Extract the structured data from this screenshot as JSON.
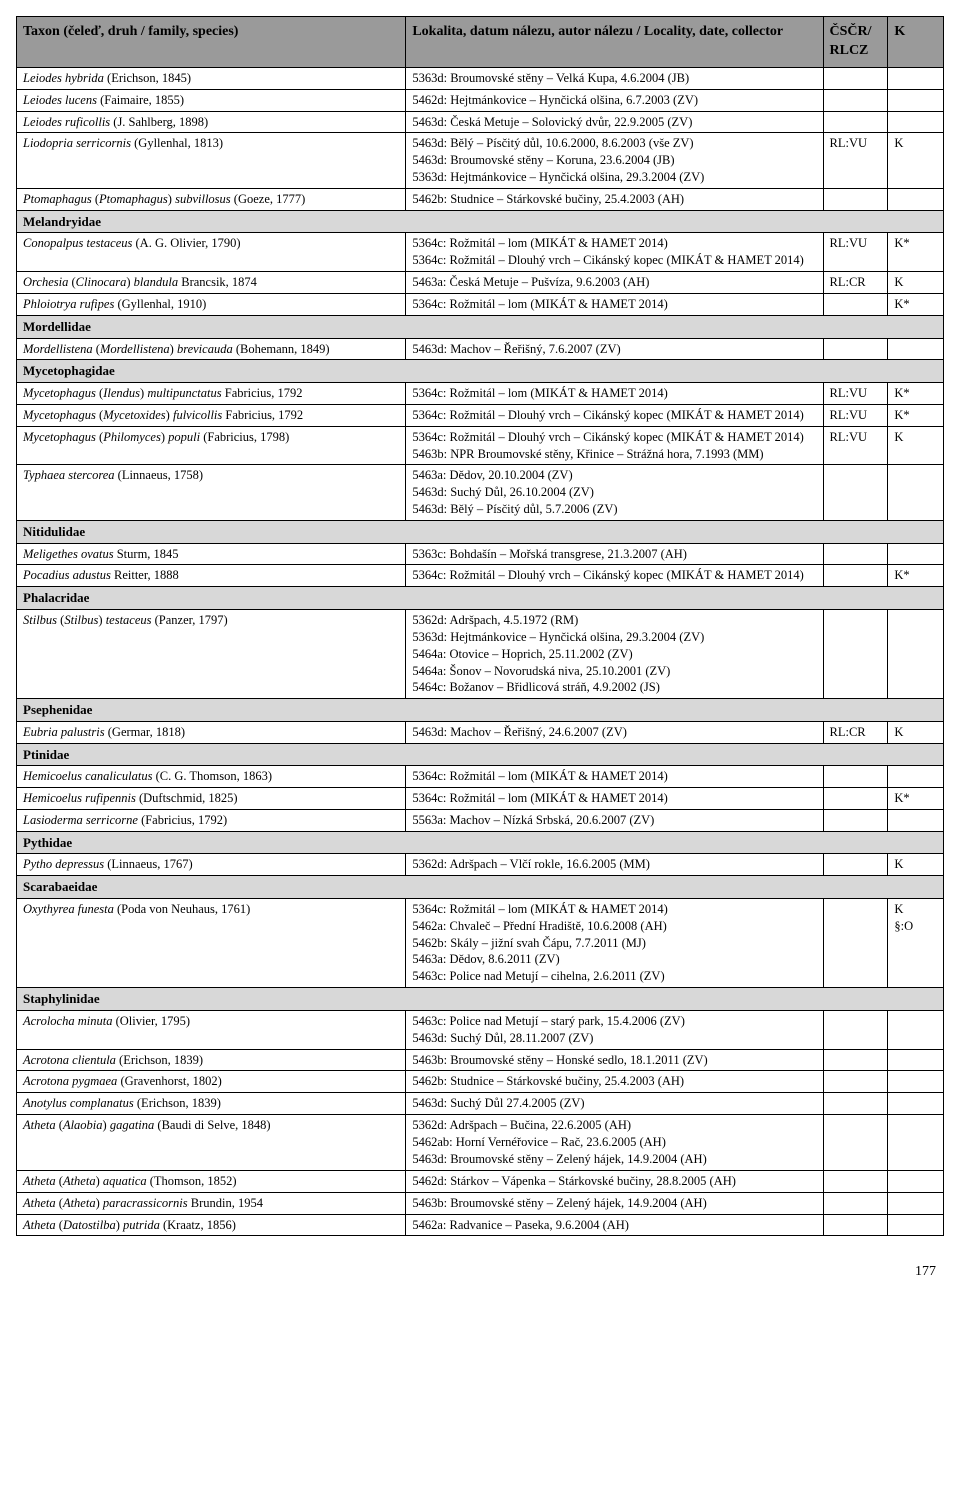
{
  "header": {
    "taxon": "Taxon (čeleď, druh / family, species)",
    "locality": "Lokalita, datum nálezu, autor nálezu / Locality, date, collector",
    "cscr": "ČSČR/ RLCZ",
    "k": "K"
  },
  "rows": [
    {
      "type": "species",
      "taxon_html": "<em>Leiodes hybrida</em> (Erichson, 1845)",
      "loc": "5363d: Broumovské stěny – Velká Kupa, 4.6.2004 (JB)",
      "cs": "",
      "k": ""
    },
    {
      "type": "species",
      "taxon_html": "<em>Leiodes lucens</em> (Faimaire, 1855)",
      "loc": "5462d: Hejtmánkovice – Hynčická olšina, 6.7.2003 (ZV)",
      "cs": "",
      "k": ""
    },
    {
      "type": "species",
      "taxon_html": "<em>Leiodes ruficollis</em> (J. Sahlberg, 1898)",
      "loc": "5463d: Česká Metuje – Solovický dvůr, 22.9.2005 (ZV)",
      "cs": "",
      "k": ""
    },
    {
      "type": "species",
      "taxon_html": "<em>Liodopria serricornis</em> (Gyllenhal, 1813)",
      "loc": "5463d: Bělý – Písčitý důl, 10.6.2000, 8.6.2003 (vše ZV)\n5463d: Broumovské stěny – Koruna, 23.6.2004 (JB)\n5363d: Hejtmánkovice – Hynčická olšina, 29.3.2004 (ZV)",
      "cs": "RL:VU",
      "k": "K"
    },
    {
      "type": "species",
      "taxon_html": "<em>Ptomaphagus</em> (<em>Ptomaphagus</em>) <em>subvillosus</em> (Goeze, 1777)",
      "loc": "5462b: Studnice – Stárkovské bučiny, 25.4.2003 (AH)",
      "cs": "",
      "k": ""
    },
    {
      "type": "family",
      "label": "Melandryidae"
    },
    {
      "type": "species",
      "taxon_html": "<em>Conopalpus testaceus</em> (A. G. Olivier, 1790)",
      "loc": "5364c: Rožmitál – lom (MIKÁT & HAMET 2014)\n5364c: Rožmitál – Dlouhý vrch – Cikánský kopec (MIKÁT & HAMET 2014)",
      "cs": "RL:VU",
      "k": "K*"
    },
    {
      "type": "species",
      "taxon_html": "<em>Orchesia</em> (<em>Clinocara</em>) <em>blandula</em> Brancsik, 1874",
      "loc": "5463a: Česká Metuje – Pušvíza, 9.6.2003 (AH)",
      "cs": "RL:CR",
      "k": "K"
    },
    {
      "type": "species",
      "taxon_html": "<em>Phloiotrya rufipes</em> (Gyllenhal, 1910)",
      "loc": "5364c: Rožmitál – lom (MIKÁT & HAMET 2014)",
      "cs": "",
      "k": "K*"
    },
    {
      "type": "family",
      "label": "Mordellidae"
    },
    {
      "type": "species",
      "taxon_html": "<em>Mordellistena</em> (<em>Mordellistena</em>) <em>brevicauda</em> (Bohemann, 1849)",
      "loc": "5463d: Machov – Řeřišný, 7.6.2007 (ZV)",
      "cs": "",
      "k": ""
    },
    {
      "type": "family",
      "label": "Mycetophagidae"
    },
    {
      "type": "species",
      "taxon_html": "<em>Mycetophagus</em> (<em>Ilendus</em>) <em>multipunctatus</em> Fabricius, 1792",
      "loc": "5364c: Rožmitál – lom (MIKÁT & HAMET 2014)",
      "cs": "RL:VU",
      "k": "K*"
    },
    {
      "type": "species",
      "taxon_html": "<em>Mycetophagus</em> (<em>Mycetoxides</em>) <em>fulvicollis</em> Fabricius, 1792",
      "loc": "5364c: Rožmitál – Dlouhý vrch – Cikánský kopec (MIKÁT & HAMET 2014)",
      "cs": "RL:VU",
      "k": "K*"
    },
    {
      "type": "species",
      "taxon_html": "<em>Mycetophagus</em> (<em>Philomyces</em>) <em>populi</em> (Fabricius, 1798)",
      "loc": "5364c: Rožmitál – Dlouhý vrch – Cikánský kopec (MIKÁT & HAMET 2014)\n5463b: NPR Broumovské stěny, Křinice – Strážná hora, 7.1993 (MM)",
      "cs": "RL:VU",
      "k": "K"
    },
    {
      "type": "species",
      "taxon_html": "<em>Typhaea stercorea</em> (Linnaeus, 1758)",
      "loc": "5463a: Dědov, 20.10.2004 (ZV)\n5463d: Suchý Důl, 26.10.2004 (ZV)\n5463d: Bělý – Písčitý důl, 5.7.2006 (ZV)",
      "cs": "",
      "k": ""
    },
    {
      "type": "family",
      "label": "Nitidulidae"
    },
    {
      "type": "species",
      "taxon_html": "<em>Meligethes ovatus</em> Sturm, 1845",
      "loc": "5363c: Bohdašín – Mořská transgrese, 21.3.2007 (AH)",
      "cs": "",
      "k": ""
    },
    {
      "type": "species",
      "taxon_html": "<em>Pocadius adustus</em> Reitter, 1888",
      "loc": "5364c: Rožmitál – Dlouhý vrch – Cikánský kopec (MIKÁT & HAMET 2014)",
      "cs": "",
      "k": "K*"
    },
    {
      "type": "family",
      "label": "Phalacridae"
    },
    {
      "type": "species",
      "taxon_html": "<em>Stilbus</em> (<em>Stilbus</em>) <em>testaceus</em> (Panzer, 1797)",
      "loc": "5362d: Adršpach, 4.5.1972 (RM)\n5363d: Hejtmánkovice – Hynčická olšina, 29.3.2004 (ZV)\n5464a: Otovice – Hoprich, 25.11.2002 (ZV)\n5464a: Šonov – Novorudská niva, 25.10.2001 (ZV)\n5464c: Božanov – Břidlicová stráň, 4.9.2002 (JS)",
      "cs": "",
      "k": ""
    },
    {
      "type": "family",
      "label": "Psephenidae"
    },
    {
      "type": "species",
      "taxon_html": "<em>Eubria palustris</em> (Germar, 1818)",
      "loc": "5463d: Machov – Řeřišný, 24.6.2007 (ZV)",
      "cs": "RL:CR",
      "k": "K"
    },
    {
      "type": "family",
      "label": "Ptinidae"
    },
    {
      "type": "species",
      "taxon_html": "<em>Hemicoelus canaliculatus</em> (C. G. Thomson, 1863)",
      "loc": "5364c: Rožmitál – lom (MIKÁT & HAMET 2014)",
      "cs": "",
      "k": ""
    },
    {
      "type": "species",
      "taxon_html": "<em>Hemicoelus rufipennis</em> (Duftschmid, 1825)",
      "loc": "5364c: Rožmitál – lom (MIKÁT & HAMET 2014)",
      "cs": "",
      "k": "K*"
    },
    {
      "type": "species",
      "taxon_html": "<em>Lasioderma serricorne</em> (Fabricius, 1792)",
      "loc": "5563a: Machov – Nízká Srbská, 20.6.2007 (ZV)",
      "cs": "",
      "k": ""
    },
    {
      "type": "family",
      "label": "Pythidae"
    },
    {
      "type": "species",
      "taxon_html": "<em>Pytho depressus</em> (Linnaeus, 1767)",
      "loc": "5362d: Adršpach – Vlčí rokle, 16.6.2005 (MM)",
      "cs": "",
      "k": "K"
    },
    {
      "type": "family",
      "label": "Scarabaeidae"
    },
    {
      "type": "species",
      "taxon_html": "<em>Oxythyrea funesta</em> (Poda von Neuhaus, 1761)",
      "loc": "5364c: Rožmitál – lom (MIKÁT & HAMET 2014)\n5462a: Chvaleč – Přední Hradiště, 10.6.2008 (AH)\n5462b: Skály – jižní svah Čápu, 7.7.2011 (MJ)\n5463a: Dědov, 8.6.2011 (ZV)\n5463c: Police nad Metují – cihelna, 2.6.2011 (ZV)",
      "cs": "",
      "k": "K §:O"
    },
    {
      "type": "family",
      "label": "Staphylinidae"
    },
    {
      "type": "species",
      "taxon_html": "<em>Acrolocha minuta</em> (Olivier, 1795)",
      "loc": "5463c: Police nad Metují – starý park, 15.4.2006 (ZV)\n5463d: Suchý Důl, 28.11.2007 (ZV)",
      "cs": "",
      "k": ""
    },
    {
      "type": "species",
      "taxon_html": "<em>Acrotona clientula</em> (Erichson, 1839)",
      "loc": "5463b: Broumovské stěny – Honské sedlo, 18.1.2011 (ZV)",
      "cs": "",
      "k": ""
    },
    {
      "type": "species",
      "taxon_html": "<em>Acrotona pygmaea</em> (Gravenhorst, 1802)",
      "loc": "5462b: Studnice – Stárkovské bučiny, 25.4.2003 (AH)",
      "cs": "",
      "k": ""
    },
    {
      "type": "species",
      "taxon_html": "<em>Anotylus complanatus</em> (Erichson, 1839)",
      "loc": "5463d: Suchý Důl 27.4.2005 (ZV)",
      "cs": "",
      "k": ""
    },
    {
      "type": "species",
      "taxon_html": "<em>Atheta</em> (<em>Alaobia</em>) <em>gagatina</em> (Baudi di Selve, 1848)",
      "loc": "5362d: Adršpach – Bučina, 22.6.2005 (AH)\n5462ab: Horní Vernéřovice – Rač, 23.6.2005 (AH)\n5463d: Broumovské stěny – Zelený hájek, 14.9.2004 (AH)",
      "cs": "",
      "k": ""
    },
    {
      "type": "species",
      "taxon_html": "<em>Atheta</em> (<em>Atheta</em>) <em>aquatica</em> (Thomson, 1852)",
      "loc": "5462d: Stárkov – Vápenka – Stárkovské bučiny, 28.8.2005 (AH)",
      "cs": "",
      "k": ""
    },
    {
      "type": "species",
      "taxon_html": "<em>Atheta</em> (<em>Atheta</em>) <em>paracrassicornis</em> Brundin, 1954",
      "loc": "5463b: Broumovské stěny – Zelený hájek, 14.9.2004 (AH)",
      "cs": "",
      "k": ""
    },
    {
      "type": "species",
      "taxon_html": "<em>Atheta</em> (<em>Datostilba</em>) <em>putrida</em> (Kraatz, 1856)",
      "loc": "5462a: Radvanice – Paseka, 9.6.2004 (AH)",
      "cs": "",
      "k": ""
    }
  ],
  "pagenum": "177"
}
